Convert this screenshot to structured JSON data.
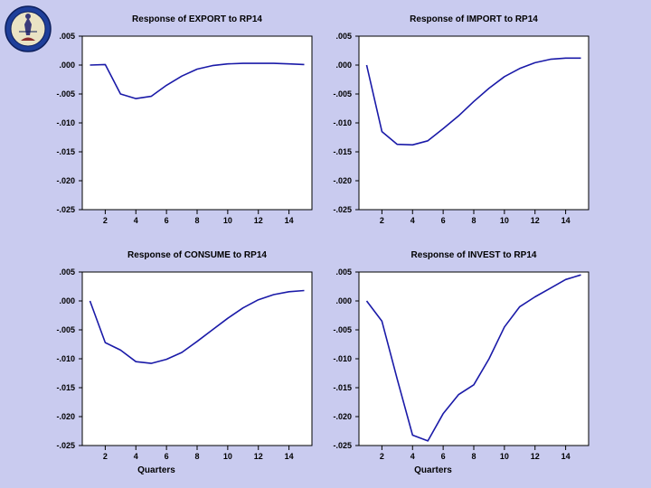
{
  "logo": {
    "icon": "seal-emblem-icon"
  },
  "colors": {
    "background": "#c9cbef",
    "plot_bg": "#ffffff",
    "line": "#1a1aa8",
    "axis": "#000000"
  },
  "chart_data": [
    {
      "type": "line",
      "title": "Response of EXPORT to RP14",
      "xlabel": "",
      "ylabel": "",
      "x": [
        1,
        2,
        3,
        4,
        5,
        6,
        7,
        8,
        9,
        10,
        11,
        12,
        13,
        14,
        15
      ],
      "series": [
        {
          "values": [
            0.0,
            0.0001,
            -0.005,
            -0.0058,
            -0.0054,
            -0.0035,
            -0.0019,
            -0.0007,
            -0.0001,
            0.0002,
            0.0003,
            0.0003,
            0.0003,
            0.0002,
            0.0001
          ]
        }
      ],
      "xlim": [
        0.5,
        15.5
      ],
      "ylim": [
        -0.025,
        0.005
      ],
      "xticks": [
        2,
        4,
        6,
        8,
        10,
        12,
        14
      ],
      "yticks": [
        0.005,
        0.0,
        -0.005,
        -0.01,
        -0.015,
        -0.02,
        -0.025
      ],
      "ytick_labels": [
        ".005",
        ".000",
        "-.005",
        "-.010",
        "-.015",
        "-.020",
        "-.025"
      ],
      "grid": false
    },
    {
      "type": "line",
      "title": "Response of IMPORT to RP14",
      "xlabel": "",
      "ylabel": "",
      "x": [
        1,
        2,
        3,
        4,
        5,
        6,
        7,
        8,
        9,
        10,
        11,
        12,
        13,
        14,
        15
      ],
      "series": [
        {
          "values": [
            0.0,
            -0.0115,
            -0.0137,
            -0.0138,
            -0.0131,
            -0.011,
            -0.0088,
            -0.0063,
            -0.004,
            -0.002,
            -0.0006,
            0.0004,
            0.001,
            0.0012,
            0.0012
          ]
        }
      ],
      "xlim": [
        0.5,
        15.5
      ],
      "ylim": [
        -0.025,
        0.005
      ],
      "xticks": [
        2,
        4,
        6,
        8,
        10,
        12,
        14
      ],
      "yticks": [
        0.005,
        0.0,
        -0.005,
        -0.01,
        -0.015,
        -0.02,
        -0.025
      ],
      "ytick_labels": [
        ".005",
        ".000",
        "-.005",
        "-.010",
        "-.015",
        "-.020",
        "-.025"
      ],
      "grid": false
    },
    {
      "type": "line",
      "title": "Response of CONSUME to RP14",
      "xlabel": "Quarters",
      "ylabel": "",
      "x": [
        1,
        2,
        3,
        4,
        5,
        6,
        7,
        8,
        9,
        10,
        11,
        12,
        13,
        14,
        15
      ],
      "series": [
        {
          "values": [
            0.0,
            -0.0072,
            -0.0085,
            -0.0105,
            -0.0108,
            -0.0101,
            -0.0089,
            -0.007,
            -0.005,
            -0.003,
            -0.0012,
            0.0002,
            0.0011,
            0.0016,
            0.0018
          ]
        }
      ],
      "xlim": [
        0.5,
        15.5
      ],
      "ylim": [
        -0.025,
        0.005
      ],
      "xticks": [
        2,
        4,
        6,
        8,
        10,
        12,
        14
      ],
      "yticks": [
        0.005,
        0.0,
        -0.005,
        -0.01,
        -0.015,
        -0.02,
        -0.025
      ],
      "ytick_labels": [
        ".005",
        ".000",
        "-.005",
        "-.010",
        "-.015",
        "-.020",
        "-.025"
      ],
      "grid": false
    },
    {
      "type": "line",
      "title": "Response of INVEST to RP14",
      "xlabel": "Quarters",
      "ylabel": "",
      "x": [
        1,
        2,
        3,
        4,
        5,
        6,
        7,
        8,
        9,
        10,
        11,
        12,
        13,
        14,
        15
      ],
      "series": [
        {
          "values": [
            0.0,
            -0.0035,
            -0.0135,
            -0.0232,
            -0.0242,
            -0.0195,
            -0.0162,
            -0.0145,
            -0.01,
            -0.0045,
            -0.001,
            0.0007,
            0.0022,
            0.0037,
            0.0045
          ]
        }
      ],
      "xlim": [
        0.5,
        15.5
      ],
      "ylim": [
        -0.025,
        0.005
      ],
      "xticks": [
        2,
        4,
        6,
        8,
        10,
        12,
        14
      ],
      "yticks": [
        0.005,
        0.0,
        -0.005,
        -0.01,
        -0.015,
        -0.02,
        -0.025
      ],
      "ytick_labels": [
        ".005",
        ".000",
        "-.005",
        "-.010",
        "-.015",
        "-.020",
        "-.025"
      ],
      "grid": false
    }
  ]
}
